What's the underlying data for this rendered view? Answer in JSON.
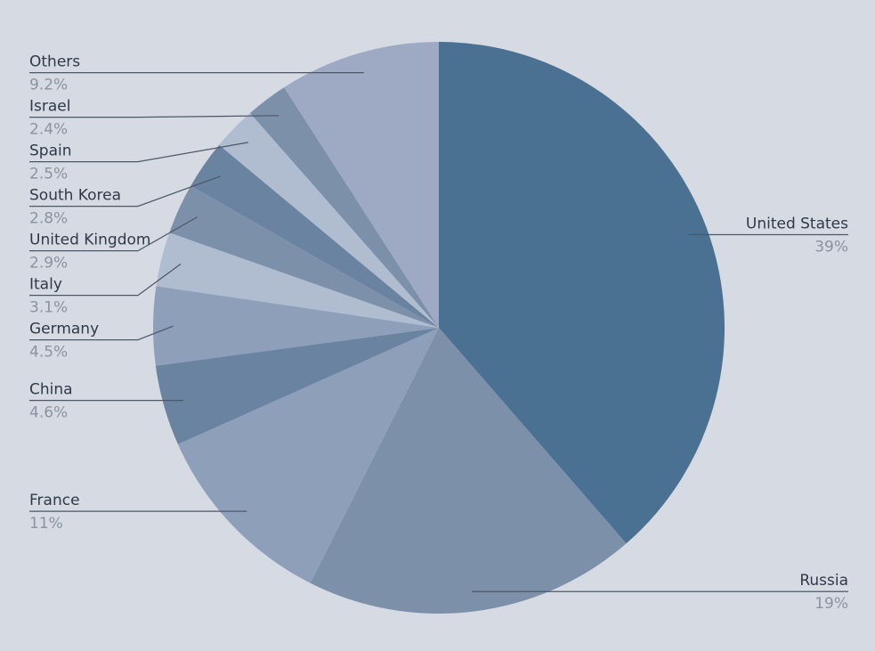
{
  "chart_data": {
    "type": "pie",
    "categories": [
      "United States",
      "Russia",
      "France",
      "China",
      "Germany",
      "Italy",
      "United Kingdom",
      "South Korea",
      "Spain",
      "Israel",
      "Others"
    ],
    "values": [
      39,
      19,
      11,
      4.6,
      4.5,
      3.1,
      2.9,
      2.8,
      2.5,
      2.4,
      9.2
    ],
    "value_labels": [
      "39%",
      "19%",
      "11%",
      "4.6%",
      "4.5%",
      "3.1%",
      "2.9%",
      "2.8%",
      "2.5%",
      "2.4%",
      "9.2%"
    ],
    "colors": [
      "#4a7192",
      "#7d90aa",
      "#8e9fb9",
      "#6a83a1",
      "#8e9fb9",
      "#b0bcd0",
      "#7d90aa",
      "#6a83a1",
      "#b0bcd0",
      "#7d90aa",
      "#9eaac3"
    ]
  }
}
